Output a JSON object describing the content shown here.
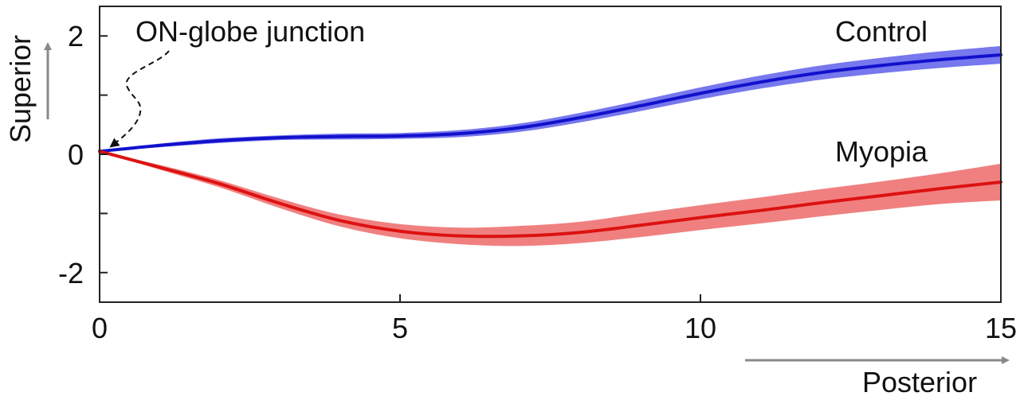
{
  "chart_data": {
    "type": "line",
    "title": "",
    "xlabel": "Posterior",
    "ylabel": "Superior",
    "xlim": [
      0,
      15
    ],
    "ylim": [
      -2.5,
      2.5
    ],
    "xticks": [
      0,
      5,
      10,
      15
    ],
    "xtick_labels": [
      "0",
      "5",
      "10",
      "15"
    ],
    "yticks": [
      -2,
      -1,
      0,
      1,
      2
    ],
    "ytick_labels": [
      "-2",
      "",
      "0",
      "",
      "2"
    ],
    "grid": false,
    "series": [
      {
        "name": "Control",
        "color": "#1111cc",
        "band_color": "#7777ee",
        "x": [
          0,
          1,
          2,
          3,
          4,
          5,
          6,
          7,
          8,
          9,
          10,
          11,
          12,
          13,
          14,
          15
        ],
        "y": [
          0.05,
          0.15,
          0.23,
          0.28,
          0.3,
          0.31,
          0.35,
          0.45,
          0.62,
          0.82,
          1.03,
          1.22,
          1.38,
          1.5,
          1.6,
          1.68
        ],
        "lower": [
          0.05,
          0.12,
          0.19,
          0.24,
          0.25,
          0.26,
          0.29,
          0.38,
          0.54,
          0.73,
          0.93,
          1.11,
          1.26,
          1.37,
          1.46,
          1.53
        ],
        "upper": [
          0.05,
          0.18,
          0.27,
          0.32,
          0.35,
          0.36,
          0.41,
          0.52,
          0.7,
          0.91,
          1.13,
          1.33,
          1.5,
          1.63,
          1.74,
          1.83
        ]
      },
      {
        "name": "Myopia",
        "color": "#dd1111",
        "band_color": "#f08080",
        "x": [
          0,
          1,
          2,
          3,
          4,
          5,
          6,
          7,
          8,
          9,
          10,
          11,
          12,
          13,
          14,
          15
        ],
        "y": [
          0.05,
          -0.22,
          -0.5,
          -0.83,
          -1.12,
          -1.3,
          -1.38,
          -1.38,
          -1.32,
          -1.2,
          -1.07,
          -0.95,
          -0.82,
          -0.7,
          -0.58,
          -0.47
        ],
        "lower": [
          0.05,
          -0.26,
          -0.56,
          -0.91,
          -1.22,
          -1.42,
          -1.52,
          -1.55,
          -1.5,
          -1.4,
          -1.28,
          -1.17,
          -1.05,
          -0.94,
          -0.84,
          -0.78
        ],
        "upper": [
          0.05,
          -0.18,
          -0.44,
          -0.75,
          -1.02,
          -1.18,
          -1.24,
          -1.21,
          -1.14,
          -1.0,
          -0.86,
          -0.73,
          -0.59,
          -0.46,
          -0.32,
          -0.16
        ]
      }
    ],
    "annotations": [
      {
        "name": "junction",
        "text": "ON-globe junction",
        "x": 0,
        "y": 0.05
      }
    ],
    "direction_labels": {
      "x": "Posterior",
      "y": "Superior"
    }
  }
}
